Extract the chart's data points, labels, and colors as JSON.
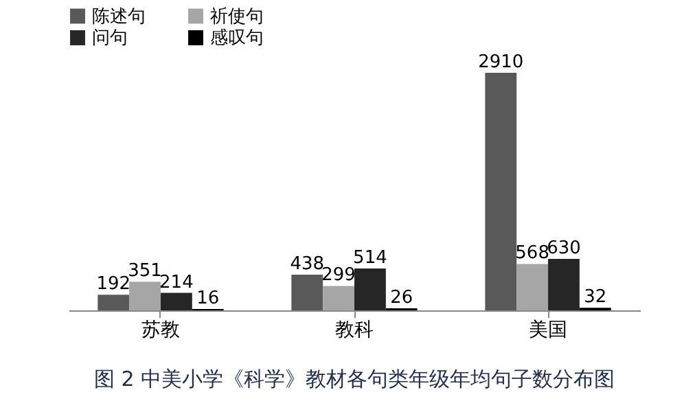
{
  "chart_data": {
    "type": "bar",
    "title": "图 2  中美小学《科学》教材各句类年级年均句子数分布图",
    "categories": [
      "苏教",
      "教科",
      "美国"
    ],
    "series": [
      {
        "name": "陈述句",
        "color": "#595959",
        "values": [
          192,
          438,
          2910
        ]
      },
      {
        "name": "祈使句",
        "color": "#a6a6a6",
        "values": [
          351,
          299,
          568
        ]
      },
      {
        "name": "问句",
        "color": "#262626",
        "values": [
          214,
          514,
          630
        ]
      },
      {
        "name": "感叹句",
        "color": "#000000",
        "values": [
          16,
          26,
          32
        ]
      }
    ],
    "data_labels": true,
    "legend": "top",
    "grid": false
  }
}
